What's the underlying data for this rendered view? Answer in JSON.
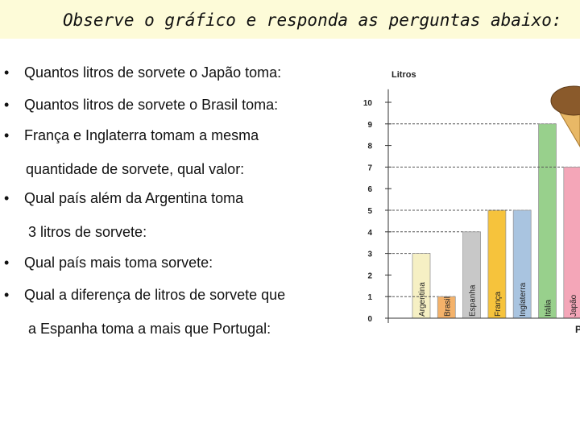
{
  "header": {
    "title": "Observe o gráfico e responda as perguntas abaixo:"
  },
  "questions": [
    {
      "bullet": "•",
      "lines": [
        "Quantos litros de sorvete o Japão toma:"
      ]
    },
    {
      "bullet": "•",
      "lines": [
        "Quantos litros de sorvete o Brasil toma:"
      ]
    },
    {
      "bullet": "•",
      "lines": [
        "França e Inglaterra tomam a mesma",
        "quantidade de sorvete, qual valor:"
      ]
    },
    {
      "bullet": "•",
      "lines": [
        "Qual país além da Argentina toma",
        "3 litros de sorvete:"
      ]
    },
    {
      "bullet": "•",
      "lines": [
        "Qual país mais toma sorvete:"
      ]
    },
    {
      "bullet": "•",
      "lines": [
        "Qual a diferença de litros de sorvete que",
        "a Espanha toma a mais que Portugal:"
      ]
    }
  ],
  "chart_data": {
    "type": "bar",
    "ylabel": "Litros",
    "ylim": [
      0,
      10
    ],
    "yticks": [
      0,
      1,
      2,
      3,
      4,
      5,
      6,
      7,
      8,
      9,
      10
    ],
    "xaxis_partial_label": "P",
    "categories": [
      "Argentina",
      "Brasil",
      "Espanha",
      "França",
      "Inglaterra",
      "Itália",
      "Japão"
    ],
    "values": [
      3,
      1,
      4,
      5,
      5,
      9,
      7
    ],
    "colors": [
      "#f6f0c4",
      "#f4b26a",
      "#c8c8c8",
      "#f6c33c",
      "#a9c4e0",
      "#98d08c",
      "#f4a6b8"
    ],
    "grid": "dashed lines at top of each bar",
    "decoration": "ice-cream-icon"
  }
}
